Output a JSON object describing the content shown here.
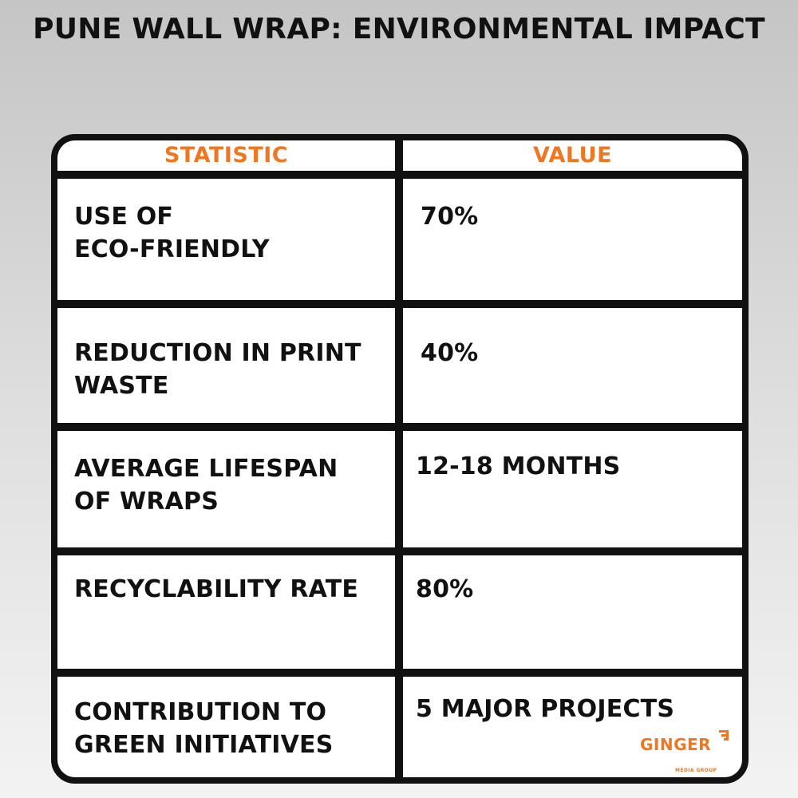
{
  "title": "PUNE WALL WRAP: ENVIRONMENTAL IMPACT",
  "table": {
    "headers": [
      "STATISTIC",
      "VALUE"
    ],
    "rows": [
      {
        "statistic": [
          "USE OF",
          "ECO-FRIENDLY"
        ],
        "value": "70%"
      },
      {
        "statistic": [
          "REDUCTION IN PRINT",
          "WASTE"
        ],
        "value": "40%"
      },
      {
        "statistic": [
          "AVERAGE LIFESPAN",
          "OF WRAPS"
        ],
        "value": "12-18 MONTHS"
      },
      {
        "statistic": [
          "RECYCLABILITY RATE"
        ],
        "value": "80%"
      },
      {
        "statistic": [
          "CONTRIBUTION TO",
          "GREEN INITIATIVES"
        ],
        "value": "5 MAJOR PROJECTS"
      }
    ]
  },
  "logo": {
    "name": "GINGER",
    "tagline": "MEDIA GROUP"
  },
  "colors": {
    "accent": "#ee7722",
    "border": "#111111",
    "cell_background": "#ffffff"
  }
}
